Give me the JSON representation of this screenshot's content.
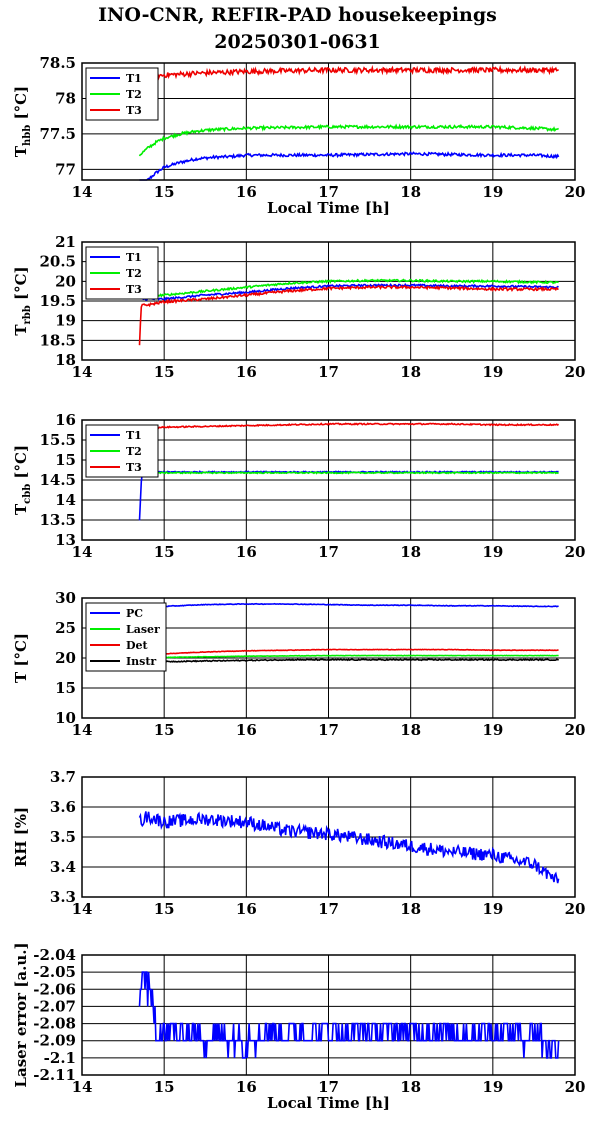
{
  "title_line1": "INO-CNR, REFIR-PAD housekeepings",
  "title_line2": "20250301-0631",
  "colors": {
    "blue": "#0000ff",
    "green": "#00ee00",
    "red": "#ee0000",
    "black": "#000000"
  },
  "chart_data": [
    {
      "type": "line",
      "ylabel_main": "T",
      "ylabel_sub": "hbb",
      "ylabel_unit": "[°C]",
      "xlabel": "Local Time [h]",
      "xlim": [
        14,
        20
      ],
      "ylim": [
        76.85,
        78.5
      ],
      "xticks": [
        "14",
        "15",
        "16",
        "17",
        "18",
        "19",
        "20"
      ],
      "yticks": [
        {
          "v": 77,
          "label": "77"
        },
        {
          "v": 77.5,
          "label": "77.5"
        },
        {
          "v": 78,
          "label": "78"
        },
        {
          "v": 78.5,
          "label": "78.5"
        }
      ],
      "legend": "top-left",
      "series": [
        {
          "name": "T1",
          "color": "#0000ff",
          "x": [
            14.7,
            14.8,
            14.9,
            15.0,
            15.2,
            15.4,
            15.6,
            15.8,
            16.0,
            16.5,
            17.0,
            17.5,
            18.0,
            18.5,
            19.0,
            19.5,
            19.8
          ],
          "y": [
            76.75,
            76.85,
            76.95,
            77.03,
            77.1,
            77.15,
            77.17,
            77.18,
            77.2,
            77.2,
            77.2,
            77.21,
            77.22,
            77.21,
            77.2,
            77.2,
            77.18
          ],
          "noise": 0.02
        },
        {
          "name": "T2",
          "color": "#00ee00",
          "x": [
            14.7,
            14.8,
            14.9,
            15.0,
            15.2,
            15.4,
            15.6,
            15.8,
            16.0,
            16.5,
            17.0,
            17.5,
            18.0,
            18.5,
            19.0,
            19.5,
            19.8
          ],
          "y": [
            77.2,
            77.3,
            77.38,
            77.44,
            77.5,
            77.54,
            77.56,
            77.57,
            77.58,
            77.59,
            77.6,
            77.6,
            77.6,
            77.6,
            77.6,
            77.58,
            77.56
          ],
          "noise": 0.02
        },
        {
          "name": "T3",
          "color": "#ee0000",
          "x": [
            14.7,
            14.75,
            14.8,
            15.0,
            15.5,
            16.0,
            16.5,
            17.0,
            17.5,
            18.0,
            18.5,
            19.0,
            19.5,
            19.8
          ],
          "y": [
            78.4,
            78.35,
            78.3,
            78.33,
            78.36,
            78.38,
            78.39,
            78.4,
            78.4,
            78.4,
            78.4,
            78.4,
            78.4,
            78.4
          ],
          "noise": 0.035
        }
      ]
    },
    {
      "type": "line",
      "ylabel_main": "T",
      "ylabel_sub": "rbb",
      "ylabel_unit": "[°C]",
      "xlabel": "",
      "xlim": [
        14,
        20
      ],
      "ylim": [
        18,
        21
      ],
      "xticks": [
        "14",
        "15",
        "16",
        "17",
        "18",
        "19",
        "20"
      ],
      "yticks": [
        {
          "v": 18,
          "label": "18"
        },
        {
          "v": 18.5,
          "label": "18.5"
        },
        {
          "v": 19,
          "label": "19"
        },
        {
          "v": 19.5,
          "label": "19.5"
        },
        {
          "v": 20,
          "label": "20"
        },
        {
          "v": 20.5,
          "label": "20.5"
        },
        {
          "v": 21,
          "label": "21"
        }
      ],
      "legend": "top-left",
      "series": [
        {
          "name": "T1",
          "color": "#0000ff",
          "x": [
            14.7,
            14.75,
            14.8,
            15.0,
            15.5,
            16.0,
            16.5,
            17.0,
            17.5,
            18.0,
            18.5,
            19.0,
            19.5,
            19.8
          ],
          "y": [
            19.55,
            19.55,
            19.55,
            19.55,
            19.65,
            19.72,
            19.82,
            19.88,
            19.9,
            19.9,
            19.88,
            19.88,
            19.86,
            19.85
          ],
          "noise": 0.025
        },
        {
          "name": "T2",
          "color": "#00ee00",
          "x": [
            14.7,
            14.75,
            14.8,
            15.0,
            15.5,
            16.0,
            16.5,
            17.0,
            17.5,
            18.0,
            18.5,
            19.0,
            19.5,
            19.8
          ],
          "y": [
            19.6,
            19.6,
            19.62,
            19.65,
            19.75,
            19.85,
            19.95,
            20.0,
            20.02,
            20.02,
            20.0,
            20.0,
            19.98,
            19.97
          ],
          "noise": 0.025
        },
        {
          "name": "T3",
          "color": "#ee0000",
          "x": [
            14.7,
            14.72,
            14.74,
            14.8,
            15.0,
            15.5,
            16.0,
            16.5,
            17.0,
            17.5,
            18.0,
            18.5,
            19.0,
            19.5,
            19.8
          ],
          "y": [
            18.35,
            19.35,
            19.4,
            19.4,
            19.48,
            19.55,
            19.65,
            19.75,
            19.82,
            19.85,
            19.85,
            19.83,
            19.8,
            19.8,
            19.8
          ],
          "noise": 0.03
        }
      ]
    },
    {
      "type": "line",
      "ylabel_main": "T",
      "ylabel_sub": "cbb",
      "ylabel_unit": "[°C]",
      "xlabel": "",
      "xlim": [
        14,
        20
      ],
      "ylim": [
        13,
        16
      ],
      "xticks": [
        "14",
        "15",
        "16",
        "17",
        "18",
        "19",
        "20"
      ],
      "yticks": [
        {
          "v": 13,
          "label": "13"
        },
        {
          "v": 13.5,
          "label": "13.5"
        },
        {
          "v": 14,
          "label": "14"
        },
        {
          "v": 14.5,
          "label": "14.5"
        },
        {
          "v": 15,
          "label": "15"
        },
        {
          "v": 15.5,
          "label": "15.5"
        },
        {
          "v": 16,
          "label": "16"
        }
      ],
      "legend": "top-left",
      "series": [
        {
          "name": "T1",
          "color": "#0000ff",
          "x": [
            14.7,
            14.71,
            14.72,
            14.73,
            14.75,
            15.0,
            15.5,
            16.0,
            16.5,
            17.0,
            17.5,
            18.0,
            18.5,
            19.0,
            19.5,
            19.8
          ],
          "y": [
            13.5,
            13.9,
            14.4,
            14.65,
            14.7,
            14.7,
            14.7,
            14.7,
            14.7,
            14.7,
            14.7,
            14.7,
            14.7,
            14.7,
            14.7,
            14.7
          ],
          "noise": 0.015
        },
        {
          "name": "T2",
          "color": "#00ee00",
          "x": [
            14.7,
            14.75,
            15.0,
            15.5,
            16.0,
            16.5,
            17.0,
            17.5,
            18.0,
            18.5,
            19.0,
            19.5,
            19.8
          ],
          "y": [
            14.68,
            14.68,
            14.68,
            14.68,
            14.68,
            14.68,
            14.68,
            14.68,
            14.68,
            14.68,
            14.68,
            14.68,
            14.68
          ],
          "noise": 0.015
        },
        {
          "name": "T3",
          "color": "#ee0000",
          "x": [
            14.7,
            14.75,
            15.0,
            15.5,
            16.0,
            16.5,
            17.0,
            17.5,
            18.0,
            18.5,
            19.0,
            19.5,
            19.8
          ],
          "y": [
            15.85,
            15.8,
            15.82,
            15.84,
            15.86,
            15.88,
            15.9,
            15.9,
            15.9,
            15.9,
            15.88,
            15.88,
            15.88
          ],
          "noise": 0.015
        }
      ]
    },
    {
      "type": "line",
      "ylabel_main": "T [°C]",
      "ylabel_sub": "",
      "ylabel_unit": "",
      "xlabel": "",
      "xlim": [
        14,
        20
      ],
      "ylim": [
        10,
        30
      ],
      "xticks": [
        "14",
        "15",
        "16",
        "17",
        "18",
        "19",
        "20"
      ],
      "yticks": [
        {
          "v": 10,
          "label": "10"
        },
        {
          "v": 15,
          "label": "15"
        },
        {
          "v": 20,
          "label": "20"
        },
        {
          "v": 25,
          "label": "25"
        },
        {
          "v": 30,
          "label": "30"
        }
      ],
      "legend": "top-left",
      "series": [
        {
          "name": "PC",
          "color": "#0000ff",
          "x": [
            14.7,
            14.8,
            15.0,
            15.5,
            16.0,
            16.5,
            17.0,
            17.5,
            18.0,
            18.5,
            19.0,
            19.5,
            19.8
          ],
          "y": [
            28.0,
            28.3,
            28.6,
            28.9,
            29.0,
            29.0,
            28.9,
            28.8,
            28.8,
            28.7,
            28.7,
            28.6,
            28.6
          ],
          "noise": 0.05
        },
        {
          "name": "Laser",
          "color": "#00ee00",
          "x": [
            14.7,
            15.0,
            15.5,
            16.0,
            16.5,
            17.0,
            17.5,
            18.0,
            18.5,
            19.0,
            19.5,
            19.8
          ],
          "y": [
            20.0,
            20.1,
            20.2,
            20.3,
            20.35,
            20.4,
            20.4,
            20.4,
            20.4,
            20.4,
            20.4,
            20.4
          ],
          "noise": 0.03
        },
        {
          "name": "Det",
          "color": "#ee0000",
          "x": [
            14.7,
            15.0,
            15.5,
            16.0,
            16.5,
            17.0,
            17.5,
            18.0,
            18.5,
            19.0,
            19.5,
            19.8
          ],
          "y": [
            20.5,
            20.7,
            21.0,
            21.2,
            21.3,
            21.4,
            21.4,
            21.4,
            21.4,
            21.3,
            21.3,
            21.3
          ],
          "noise": 0.04
        },
        {
          "name": "Instr",
          "color": "#000000",
          "x": [
            14.7,
            15.0,
            15.5,
            16.0,
            16.5,
            17.0,
            17.5,
            18.0,
            18.5,
            19.0,
            19.5,
            19.8
          ],
          "y": [
            19.3,
            19.4,
            19.5,
            19.6,
            19.7,
            19.7,
            19.7,
            19.7,
            19.7,
            19.7,
            19.7,
            19.7
          ],
          "noise": 0.08
        }
      ]
    },
    {
      "type": "line",
      "ylabel_main": "RH [%]",
      "ylabel_sub": "",
      "ylabel_unit": "",
      "xlabel": "",
      "xlim": [
        14,
        20
      ],
      "ylim": [
        3.3,
        3.7
      ],
      "xticks": [
        "14",
        "15",
        "16",
        "17",
        "18",
        "19",
        "20"
      ],
      "yticks": [
        {
          "v": 3.3,
          "label": "3.3"
        },
        {
          "v": 3.4,
          "label": "3.4"
        },
        {
          "v": 3.5,
          "label": "3.5"
        },
        {
          "v": 3.6,
          "label": "3.6"
        },
        {
          "v": 3.7,
          "label": "3.7"
        }
      ],
      "legend": "none",
      "series": [
        {
          "name": "",
          "color": "#0000ff",
          "x": [
            14.7,
            14.8,
            15.0,
            15.5,
            16.0,
            16.5,
            17.0,
            17.5,
            18.0,
            18.5,
            19.0,
            19.3,
            19.5,
            19.7,
            19.8
          ],
          "y": [
            3.55,
            3.57,
            3.55,
            3.56,
            3.55,
            3.52,
            3.51,
            3.49,
            3.47,
            3.45,
            3.44,
            3.42,
            3.41,
            3.37,
            3.35
          ],
          "noise": 0.022
        }
      ]
    },
    {
      "type": "line",
      "ylabel_main": "Laser error [a.u.]",
      "ylabel_sub": "",
      "ylabel_unit": "",
      "xlabel": "Local Time [h]",
      "xlim": [
        14,
        20
      ],
      "ylim": [
        -2.11,
        -2.04
      ],
      "xticks": [
        "14",
        "15",
        "16",
        "17",
        "18",
        "19",
        "20"
      ],
      "yticks": [
        {
          "v": -2.11,
          "label": "-2.11"
        },
        {
          "v": -2.1,
          "label": "-2.1"
        },
        {
          "v": -2.09,
          "label": "-2.09"
        },
        {
          "v": -2.08,
          "label": "-2.08"
        },
        {
          "v": -2.07,
          "label": "-2.07"
        },
        {
          "v": -2.06,
          "label": "-2.06"
        },
        {
          "v": -2.05,
          "label": "-2.05"
        },
        {
          "v": -2.04,
          "label": "-2.04"
        }
      ],
      "legend": "none",
      "series": [
        {
          "name": "",
          "color": "#0000ff",
          "x": [
            14.7,
            14.75,
            14.8,
            14.85,
            14.9,
            15.0,
            15.5,
            16.0,
            16.5,
            17.0,
            17.5,
            18.0,
            18.5,
            19.0,
            19.5,
            19.8
          ],
          "y": [
            -2.062,
            -2.05,
            -2.06,
            -2.07,
            -2.08,
            -2.085,
            -2.088,
            -2.088,
            -2.085,
            -2.085,
            -2.085,
            -2.085,
            -2.085,
            -2.085,
            -2.087,
            -2.095
          ],
          "noise": 0.009,
          "quant": 0.01
        }
      ]
    }
  ]
}
